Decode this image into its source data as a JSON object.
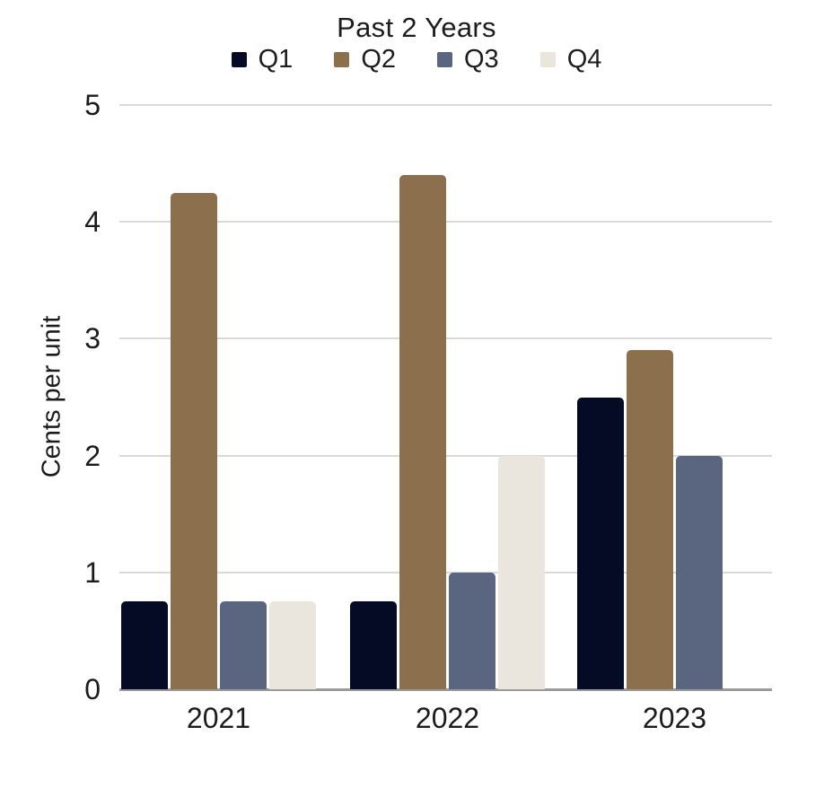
{
  "chart_data": {
    "type": "bar",
    "title": "Past 2 Years",
    "ylabel": "Cents per unit",
    "xlabel": "",
    "categories": [
      "2021",
      "2022",
      "2023"
    ],
    "series": [
      {
        "name": "Q1",
        "color": "#050b24",
        "values": [
          0.75,
          0.75,
          2.5
        ]
      },
      {
        "name": "Q2",
        "color": "#8c6f4d",
        "values": [
          4.25,
          4.4,
          2.9
        ]
      },
      {
        "name": "Q3",
        "color": "#5a6580",
        "values": [
          0.75,
          1.0,
          2.0
        ]
      },
      {
        "name": "Q4",
        "color": "#eae5dd",
        "values": [
          0.75,
          2.0,
          0
        ]
      }
    ],
    "ylim": [
      0,
      5
    ],
    "y_ticks": [
      0,
      1,
      2,
      3,
      4,
      5
    ],
    "grid": true,
    "legend_position": "top"
  },
  "colors": {
    "gridline": "#d9d9d9",
    "axis_line": "#9b9b9b",
    "text": "#1b1b1b"
  }
}
